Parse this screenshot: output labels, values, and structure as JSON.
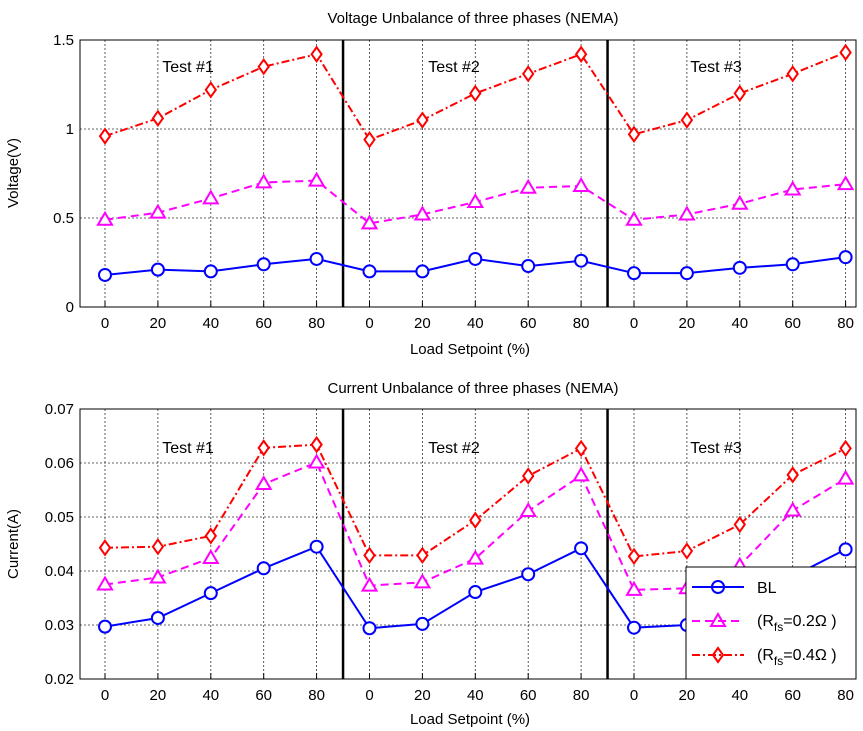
{
  "chart_data": [
    {
      "type": "line",
      "title": "Voltage Unbalance of three phases (NEMA)",
      "xlabel": "Load Setpoint (%)",
      "ylabel": "Voltage(V)",
      "categories": [
        "0",
        "20",
        "40",
        "60",
        "80",
        "0",
        "20",
        "40",
        "60",
        "80",
        "0",
        "20",
        "40",
        "60",
        "80"
      ],
      "ylim": [
        0,
        1.5
      ],
      "yticks": [
        "0",
        "0.5",
        "1",
        "1.5"
      ],
      "grid": true,
      "annotations": [
        "Test #1",
        "Test #2",
        "Test #3"
      ],
      "series": [
        {
          "key": "bl",
          "values": [
            0.18,
            0.21,
            0.2,
            0.24,
            0.27,
            0.2,
            0.2,
            0.27,
            0.23,
            0.26,
            0.19,
            0.19,
            0.22,
            0.24,
            0.28
          ]
        },
        {
          "key": "r02",
          "values": [
            0.49,
            0.53,
            0.61,
            0.7,
            0.71,
            0.47,
            0.52,
            0.59,
            0.67,
            0.68,
            0.49,
            0.52,
            0.58,
            0.66,
            0.69
          ]
        },
        {
          "key": "r04",
          "values": [
            0.96,
            1.06,
            1.22,
            1.35,
            1.42,
            0.94,
            1.05,
            1.2,
            1.31,
            1.42,
            0.97,
            1.05,
            1.2,
            1.31,
            1.43
          ]
        }
      ]
    },
    {
      "type": "line",
      "title": "Current Unbalance of three phases (NEMA)",
      "xlabel": "Load Setpoint (%)",
      "ylabel": "Current(A)",
      "categories": [
        "0",
        "20",
        "40",
        "60",
        "80",
        "0",
        "20",
        "40",
        "60",
        "80",
        "0",
        "20",
        "40",
        "60",
        "80"
      ],
      "ylim": [
        0.02,
        0.07
      ],
      "yticks": [
        "0.02",
        "0.03",
        "0.04",
        "0.05",
        "0.06",
        "0.07"
      ],
      "grid": true,
      "annotations": [
        "Test #1",
        "Test #2",
        "Test #3"
      ],
      "legend": {
        "placement": "bottom-right",
        "entries": [
          "BL",
          "(R",
          "fs",
          "=0.2Ω )",
          "(R",
          "fs",
          "=0.4Ω )"
        ]
      },
      "series": [
        {
          "key": "bl",
          "name": "BL",
          "values": [
            0.0297,
            0.0313,
            0.0359,
            0.0405,
            0.0445,
            0.0294,
            0.0302,
            0.0361,
            0.0394,
            0.0442,
            0.0295,
            0.03,
            0.033,
            0.039,
            0.044
          ]
        },
        {
          "key": "r02",
          "name": "(Rfs=0.2Ω )",
          "values": [
            0.0375,
            0.0388,
            0.0424,
            0.0561,
            0.0601,
            0.0373,
            0.0379,
            0.0423,
            0.0511,
            0.0577,
            0.0365,
            0.0368,
            0.041,
            0.0512,
            0.0571
          ]
        },
        {
          "key": "r04",
          "name": "(Rfs=0.4Ω )",
          "values": [
            0.0443,
            0.0445,
            0.0465,
            0.0628,
            0.0634,
            0.0429,
            0.0429,
            0.0494,
            0.0576,
            0.0627,
            0.0427,
            0.0437,
            0.0486,
            0.0578,
            0.0627
          ]
        }
      ]
    }
  ],
  "styles": {
    "bl": {
      "color": "#0000ff",
      "dash": "solid",
      "marker": "circle"
    },
    "r02": {
      "color": "#ff00ff",
      "dash": "dashed",
      "marker": "triangle"
    },
    "r04": {
      "color": "#ff0000",
      "dash": "dash-dot",
      "marker": "diamond"
    }
  }
}
